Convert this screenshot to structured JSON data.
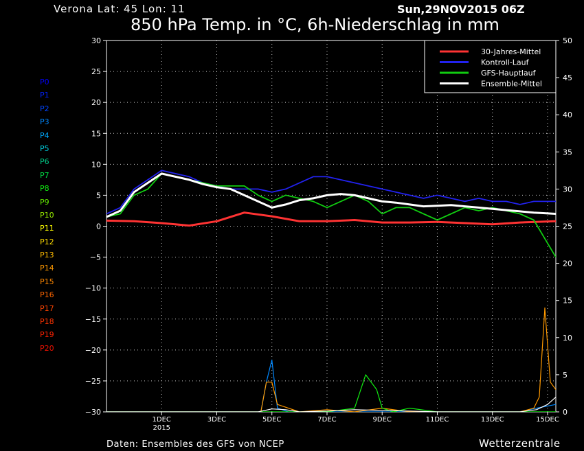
{
  "header": {
    "location": "Verona   Lat: 45  Lon: 11",
    "run": "Sun,29NOV2015 06Z",
    "title": "850 hPa Temp. in °C, 6h-Niederschlag in mm"
  },
  "footer": {
    "source": "Daten: Ensembles des GFS von NCEP",
    "brand": "Wetterzentrale"
  },
  "members": [
    {
      "label": "P0",
      "color": "#0000ff"
    },
    {
      "label": "P1",
      "color": "#0022ff"
    },
    {
      "label": "P2",
      "color": "#0044ff"
    },
    {
      "label": "P3",
      "color": "#0088ff"
    },
    {
      "label": "P4",
      "color": "#00aaff"
    },
    {
      "label": "P5",
      "color": "#00ccdd"
    },
    {
      "label": "P6",
      "color": "#00cc88"
    },
    {
      "label": "P7",
      "color": "#00dd44"
    },
    {
      "label": "P8",
      "color": "#11ee11"
    },
    {
      "label": "P9",
      "color": "#66ee00"
    },
    {
      "label": "P10",
      "color": "#99ee00"
    },
    {
      "label": "P11",
      "color": "#ffff00"
    },
    {
      "label": "P12",
      "color": "#ffdd00"
    },
    {
      "label": "P13",
      "color": "#ffbb00"
    },
    {
      "label": "P14",
      "color": "#ff9900"
    },
    {
      "label": "P15",
      "color": "#ff8800"
    },
    {
      "label": "P16",
      "color": "#ff6600"
    },
    {
      "label": "P17",
      "color": "#ff4400"
    },
    {
      "label": "P18",
      "color": "#ff3300"
    },
    {
      "label": "P19",
      "color": "#ff2200"
    },
    {
      "label": "P20",
      "color": "#ee1100"
    }
  ],
  "chart_data": {
    "type": "line",
    "y_left": {
      "range": [
        -30,
        30
      ],
      "ticks": [
        30,
        25,
        20,
        15,
        10,
        5,
        0,
        -5,
        -10,
        -15,
        -20,
        -25,
        -30
      ]
    },
    "y_right": {
      "range": [
        0,
        50
      ],
      "ticks": [
        50,
        45,
        40,
        35,
        30,
        25,
        20,
        15,
        10,
        5,
        0
      ]
    },
    "x_ticks": [
      {
        "label": "1DEC",
        "sub": "2015",
        "day": 2
      },
      {
        "label": "3DEC",
        "sub": "",
        "day": 4
      },
      {
        "label": "5DEC",
        "sub": "",
        "day": 6
      },
      {
        "label": "7DEC",
        "sub": "",
        "day": 8
      },
      {
        "label": "9DEC",
        "sub": "",
        "day": 10
      },
      {
        "label": "11DEC",
        "sub": "",
        "day": 12
      },
      {
        "label": "13DEC",
        "sub": "",
        "day": 14
      },
      {
        "label": "15DEC",
        "sub": "",
        "day": 16
      }
    ],
    "x_range": [
      0,
      16.3
    ],
    "grid": true,
    "legend_position": "top-right",
    "legend": [
      {
        "name": "30-Jahres-Mittel",
        "color": "#ff3333"
      },
      {
        "name": "Kontroll-Lauf",
        "color": "#2222ee"
      },
      {
        "name": "GFS-Hauptlauf",
        "color": "#11cc11"
      },
      {
        "name": "Ensemble-Mittel",
        "color": "#ffffff"
      }
    ],
    "series": [
      {
        "name": "30-Jahres-Mittel",
        "axis": "left",
        "color": "#ff3333",
        "x": [
          0,
          1,
          2,
          3,
          4,
          5,
          6,
          7,
          8,
          9,
          10,
          11,
          12,
          13,
          14,
          15,
          16.3
        ],
        "y": [
          0.9,
          0.8,
          0.5,
          0.1,
          0.8,
          2.2,
          1.6,
          0.8,
          0.8,
          1.0,
          0.6,
          0.6,
          0.7,
          0.5,
          0.3,
          0.6,
          0.8
        ]
      },
      {
        "name": "Kontroll-Lauf",
        "axis": "left",
        "color": "#2222ee",
        "x": [
          0,
          0.5,
          1,
          1.5,
          2,
          2.5,
          3,
          3.5,
          4,
          4.5,
          5,
          5.5,
          6,
          6.5,
          7,
          7.5,
          8,
          8.5,
          9,
          9.5,
          10,
          10.5,
          11,
          11.5,
          12,
          12.5,
          13,
          13.5,
          14,
          14.5,
          15,
          15.5,
          16.3
        ],
        "y": [
          2,
          3,
          6,
          7.5,
          9,
          8.5,
          8,
          7,
          6.5,
          6,
          6,
          6,
          5.5,
          6,
          7,
          8,
          8,
          7.5,
          7,
          6.5,
          6,
          5.5,
          5,
          4.5,
          5,
          4.5,
          4,
          4.5,
          4,
          4,
          3.5,
          4,
          4
        ]
      },
      {
        "name": "GFS-Hauptlauf",
        "axis": "left",
        "color": "#11cc11",
        "x": [
          0,
          0.5,
          1,
          1.5,
          2,
          2.5,
          3,
          3.5,
          4,
          4.5,
          5,
          5.5,
          6,
          6.5,
          7,
          7.5,
          8,
          8.5,
          9,
          9.5,
          10,
          10.5,
          11,
          11.5,
          12,
          12.5,
          13,
          13.5,
          14,
          14.5,
          15,
          15.5,
          16.3
        ],
        "y": [
          1.5,
          2,
          5,
          6,
          8.5,
          8,
          7.5,
          7,
          6.5,
          6.5,
          6.5,
          5,
          4,
          5,
          4.5,
          4,
          3,
          4,
          5,
          4,
          2,
          3,
          3,
          2,
          1,
          2,
          3,
          2.5,
          3,
          2.5,
          2,
          1,
          -5
        ]
      },
      {
        "name": "Ensemble-Mittel",
        "axis": "left",
        "color": "#ffffff",
        "x": [
          0,
          0.5,
          1,
          1.5,
          2,
          2.5,
          3,
          3.5,
          4,
          4.5,
          5,
          5.5,
          6,
          6.5,
          7,
          7.5,
          8,
          8.5,
          9,
          9.5,
          10,
          10.5,
          11,
          11.5,
          12,
          12.5,
          13,
          13.5,
          14,
          14.5,
          15,
          15.5,
          16.3
        ],
        "y": [
          1.5,
          2.5,
          5.5,
          7,
          8.5,
          8,
          7.5,
          6.8,
          6.3,
          6,
          5,
          4,
          3,
          3.5,
          4.2,
          4.5,
          5,
          5.2,
          5,
          4.5,
          4,
          3.8,
          3.5,
          3.2,
          3.3,
          3.4,
          3.2,
          3,
          2.8,
          2.6,
          2.4,
          2.2,
          2
        ]
      },
      {
        "name": "Niederschlag P4",
        "axis": "right",
        "color": "#0088ff",
        "x": [
          0,
          5.6,
          5.8,
          6.0,
          6.2,
          6.6,
          7,
          8,
          9,
          10,
          11,
          12,
          13,
          14,
          15,
          15.6,
          16.3
        ],
        "y": [
          0,
          0,
          4,
          7,
          0.5,
          0,
          0,
          0,
          0,
          0,
          0,
          0,
          0,
          0,
          0,
          0.5,
          1
        ]
      },
      {
        "name": "Niederschlag P14",
        "axis": "right",
        "color": "#ff9900",
        "x": [
          0,
          5.6,
          5.8,
          6.0,
          6.2,
          6.6,
          7,
          8,
          9,
          10,
          11,
          12,
          13,
          14,
          15,
          15.5,
          15.7,
          15.9,
          16.1,
          16.3
        ],
        "y": [
          0,
          0,
          4,
          4,
          1,
          0.5,
          0,
          0.3,
          0,
          0.5,
          0,
          0,
          0,
          0,
          0,
          0.5,
          2,
          14,
          4,
          3
        ]
      },
      {
        "name": "Niederschlag P8",
        "axis": "right",
        "color": "#11ee11",
        "x": [
          0,
          8,
          9,
          9.4,
          9.8,
          10,
          10.4,
          11,
          12,
          13,
          14,
          15,
          16.3
        ],
        "y": [
          0,
          0,
          0.5,
          5,
          3,
          0.5,
          0,
          0.5,
          0,
          0,
          0,
          0,
          0
        ]
      },
      {
        "name": "Niederschlag Mittel",
        "axis": "right",
        "color": "#ffffff",
        "x": [
          0,
          5.5,
          6,
          6.5,
          7,
          8,
          9,
          10,
          11,
          12,
          13,
          14,
          15,
          15.6,
          16,
          16.3
        ],
        "y": [
          0,
          0,
          0.4,
          0.3,
          0,
          0.1,
          0.3,
          0.2,
          0.1,
          0,
          0,
          0,
          0,
          0.3,
          1,
          2
        ]
      }
    ]
  }
}
